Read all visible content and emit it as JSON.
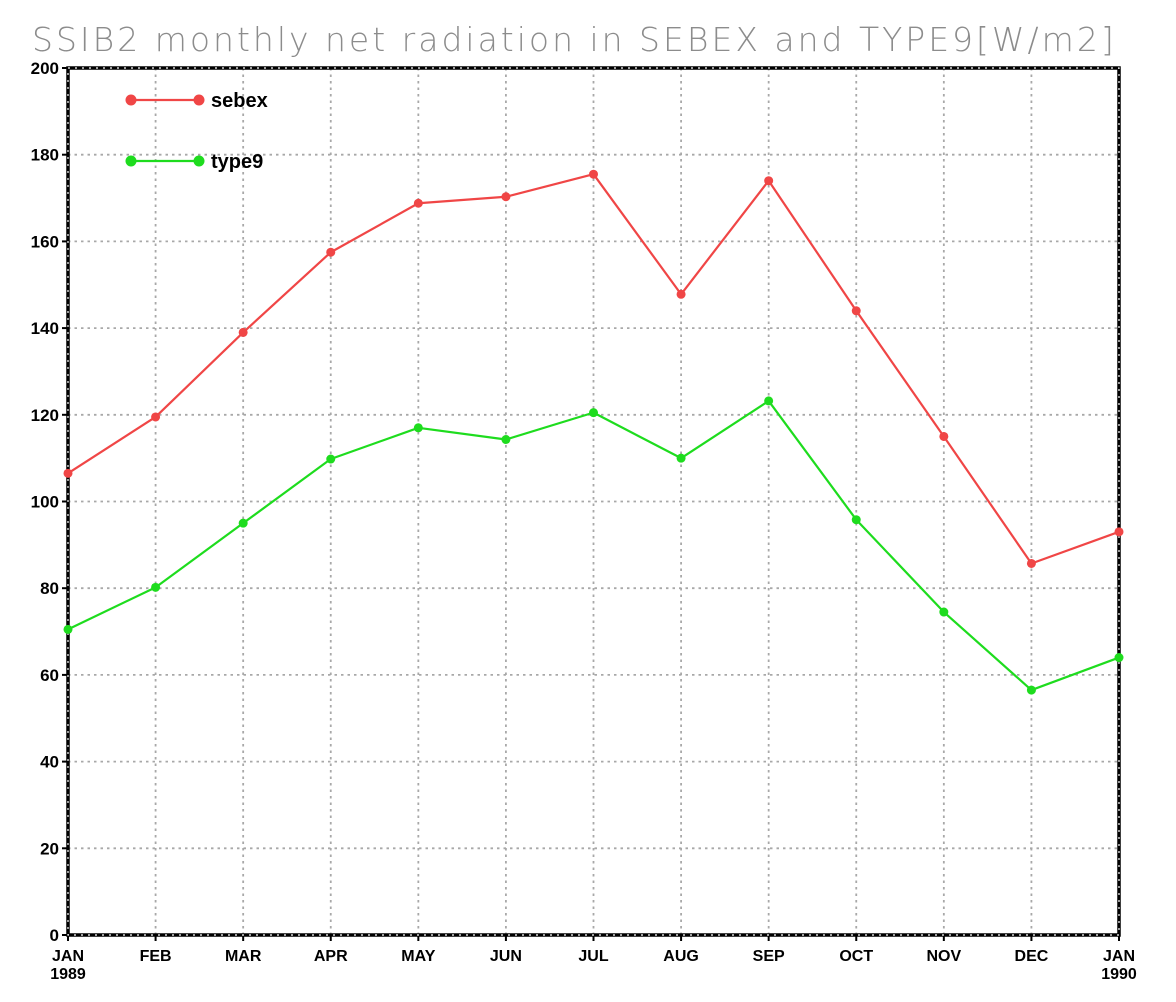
{
  "chart_data": {
    "type": "line",
    "title": "SSIB2 monthly net radiation in SEBEX and TYPE9[W/m2]",
    "xlabel": "",
    "ylabel": "",
    "categories": [
      "JAN 1989",
      "FEB",
      "MAR",
      "APR",
      "MAY",
      "JUN",
      "JUL",
      "AUG",
      "SEP",
      "OCT",
      "NOV",
      "DEC",
      "JAN 1990"
    ],
    "x_tick_labels": [
      {
        "line1": "JAN",
        "line2": "1989"
      },
      {
        "line1": "FEB",
        "line2": ""
      },
      {
        "line1": "MAR",
        "line2": ""
      },
      {
        "line1": "APR",
        "line2": ""
      },
      {
        "line1": "MAY",
        "line2": ""
      },
      {
        "line1": "JUN",
        "line2": ""
      },
      {
        "line1": "JUL",
        "line2": ""
      },
      {
        "line1": "AUG",
        "line2": ""
      },
      {
        "line1": "SEP",
        "line2": ""
      },
      {
        "line1": "OCT",
        "line2": ""
      },
      {
        "line1": "NOV",
        "line2": ""
      },
      {
        "line1": "DEC",
        "line2": ""
      },
      {
        "line1": "JAN",
        "line2": "1990"
      }
    ],
    "ylim": [
      0,
      200
    ],
    "y_ticks": [
      0,
      20,
      40,
      60,
      80,
      100,
      120,
      140,
      160,
      180,
      200
    ],
    "grid": true,
    "legend_position": "top-left",
    "series": [
      {
        "name": "sebex",
        "color": "#f04646",
        "values": [
          106.5,
          119.5,
          139,
          157.5,
          168.8,
          170.3,
          175.5,
          147.8,
          174,
          144,
          115,
          85.7,
          93
        ]
      },
      {
        "name": "type9",
        "color": "#1edc1e",
        "values": [
          70.5,
          80.2,
          95,
          109.8,
          117,
          114.3,
          120.5,
          110,
          123.2,
          95.8,
          74.5,
          56.5,
          64
        ]
      }
    ]
  }
}
